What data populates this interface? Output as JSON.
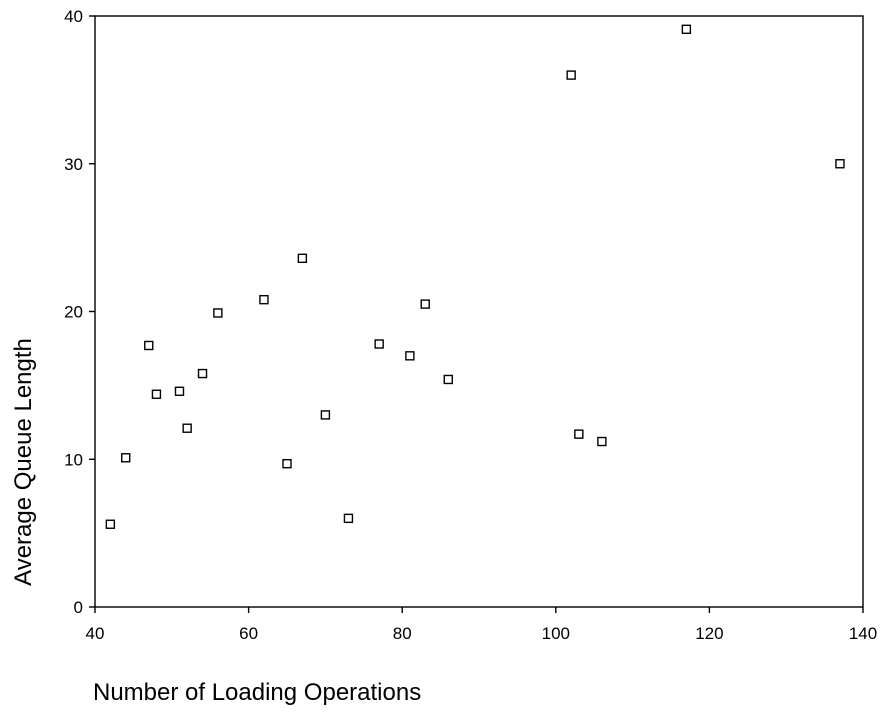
{
  "chart_data": {
    "type": "scatter",
    "title": "",
    "xlabel": "Number of Loading Operations",
    "ylabel": "Average Queue Length",
    "xlim": [
      40,
      140
    ],
    "ylim": [
      0,
      40
    ],
    "xticks": [
      40,
      60,
      80,
      100,
      120,
      140
    ],
    "yticks": [
      0,
      10,
      20,
      30,
      40
    ],
    "grid": false,
    "legend": "none",
    "marker": "hollow-square",
    "marker_color": "#000000",
    "points": [
      {
        "x": 42,
        "y": 5.6
      },
      {
        "x": 44,
        "y": 10.1
      },
      {
        "x": 47,
        "y": 17.7
      },
      {
        "x": 48,
        "y": 14.4
      },
      {
        "x": 51,
        "y": 14.6
      },
      {
        "x": 52,
        "y": 12.1
      },
      {
        "x": 54,
        "y": 15.8
      },
      {
        "x": 56,
        "y": 19.9
      },
      {
        "x": 62,
        "y": 20.8
      },
      {
        "x": 65,
        "y": 9.7
      },
      {
        "x": 67,
        "y": 23.6
      },
      {
        "x": 70,
        "y": 13.0
      },
      {
        "x": 73,
        "y": 6.0
      },
      {
        "x": 77,
        "y": 17.8
      },
      {
        "x": 81,
        "y": 17.0
      },
      {
        "x": 83,
        "y": 20.5
      },
      {
        "x": 86,
        "y": 15.4
      },
      {
        "x": 102,
        "y": 36.0
      },
      {
        "x": 103,
        "y": 11.7
      },
      {
        "x": 106,
        "y": 11.2
      },
      {
        "x": 117,
        "y": 39.1
      },
      {
        "x": 137,
        "y": 30.0
      }
    ]
  }
}
